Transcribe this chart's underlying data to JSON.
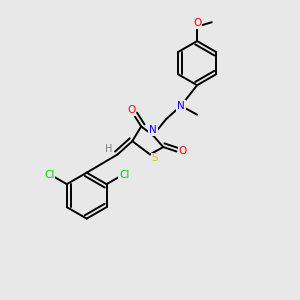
{
  "background_color": "#e8e8e8",
  "atom_colors": {
    "C": "#000000",
    "N": "#0000ff",
    "O": "#ff0000",
    "S": "#cccc00",
    "Cl": "#00cc00",
    "H": "#808080"
  },
  "bond_color": "#000000",
  "lw": 1.4
}
